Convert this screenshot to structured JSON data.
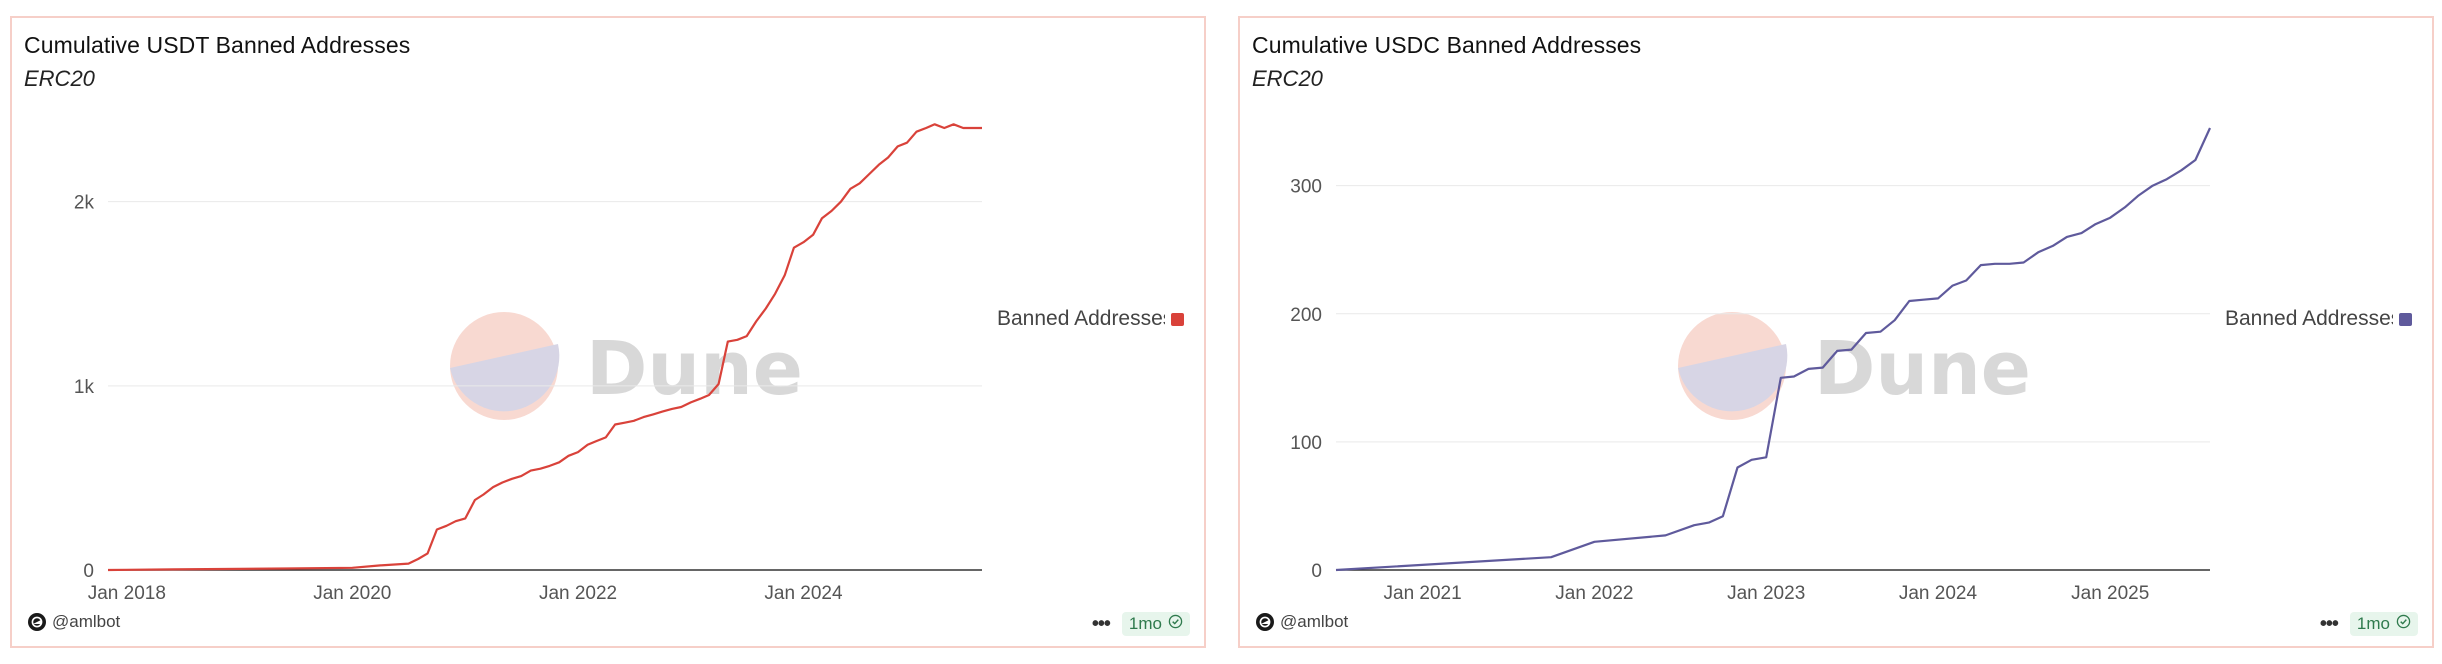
{
  "panels": [
    {
      "title": "Cumulative USDT Banned Addresses",
      "subtitle": "ERC20",
      "legend_label": "Banned Addresses",
      "author": "@amlbot",
      "freshness": "1mo",
      "watermark": "Dune",
      "color": "#d9423a"
    },
    {
      "title": "Cumulative USDC Banned Addresses",
      "subtitle": "ERC20",
      "legend_label": "Banned Addresses",
      "author": "@amlbot",
      "freshness": "1mo",
      "watermark": "Dune",
      "color": "#5f5a9c"
    }
  ],
  "chart_data": [
    {
      "type": "line",
      "title": "Cumulative USDT Banned Addresses",
      "subtitle": "ERC20",
      "xlabel": "",
      "ylabel": "",
      "x_ticks": [
        "Jan 2018",
        "Jan 2020",
        "Jan 2022",
        "Jan 2024"
      ],
      "y_ticks": [
        "0",
        "1k",
        "2k"
      ],
      "y_tick_values": [
        0,
        1000,
        2000
      ],
      "ylim": [
        0,
        2400
      ],
      "xlim": [
        "2017-11-01",
        "2025-08-01"
      ],
      "grid": true,
      "legend": "right",
      "series": [
        {
          "name": "Banned Addresses",
          "color": "#d9423a",
          "x": [
            "2017-11-01",
            "2018-06-01",
            "2019-01-01",
            "2019-06-01",
            "2020-01-01",
            "2020-04-01",
            "2020-07-01",
            "2020-08-01",
            "2020-09-01",
            "2020-10-01",
            "2020-11-01",
            "2020-12-01",
            "2021-01-01",
            "2021-02-01",
            "2021-03-01",
            "2021-04-01",
            "2021-05-01",
            "2021-06-01",
            "2021-07-01",
            "2021-08-01",
            "2021-09-01",
            "2021-10-01",
            "2021-11-01",
            "2021-12-01",
            "2022-01-01",
            "2022-02-01",
            "2022-03-01",
            "2022-04-01",
            "2022-05-01",
            "2022-06-01",
            "2022-07-01",
            "2022-08-01",
            "2022-09-01",
            "2022-10-01",
            "2022-11-01",
            "2022-12-01",
            "2023-01-01",
            "2023-02-01",
            "2023-03-01",
            "2023-04-01",
            "2023-05-01",
            "2023-06-01",
            "2023-07-01",
            "2023-08-01",
            "2023-09-01",
            "2023-10-01",
            "2023-11-01",
            "2023-12-01",
            "2024-01-01",
            "2024-02-01",
            "2024-03-01",
            "2024-04-01",
            "2024-05-01",
            "2024-06-01",
            "2024-07-01",
            "2024-08-01",
            "2024-09-01",
            "2024-10-01",
            "2024-11-01",
            "2024-12-01",
            "2025-01-01",
            "2025-02-01",
            "2025-03-01",
            "2025-04-01",
            "2025-05-01",
            "2025-06-01",
            "2025-07-01",
            "2025-08-01"
          ],
          "values": [
            0,
            3,
            6,
            8,
            12,
            25,
            35,
            60,
            90,
            220,
            240,
            265,
            280,
            380,
            410,
            450,
            475,
            495,
            510,
            540,
            550,
            565,
            585,
            620,
            640,
            680,
            700,
            720,
            790,
            800,
            810,
            830,
            845,
            860,
            875,
            885,
            910,
            930,
            950,
            1010,
            1240,
            1250,
            1270,
            1350,
            1420,
            1500,
            1600,
            1750,
            1780,
            1820,
            1910,
            1950,
            2000,
            2070,
            2100,
            2150,
            2200,
            2240,
            2300,
            2320,
            2380,
            2400,
            2420,
            2400,
            2420,
            2400,
            2400,
            2400
          ]
        }
      ]
    },
    {
      "type": "line",
      "title": "Cumulative USDC Banned Addresses",
      "subtitle": "ERC20",
      "xlabel": "",
      "ylabel": "",
      "x_ticks": [
        "Jan 2021",
        "Jan 2022",
        "Jan 2023",
        "Jan 2024",
        "Jan 2025"
      ],
      "y_ticks": [
        "0",
        "100",
        "200",
        "300"
      ],
      "y_tick_values": [
        0,
        100,
        200,
        300
      ],
      "ylim": [
        0,
        345
      ],
      "xlim": [
        "2020-07-01",
        "2025-08-01"
      ],
      "grid": true,
      "legend": "right",
      "series": [
        {
          "name": "Banned Addresses",
          "color": "#5f5a9c",
          "x": [
            "2020-07-01",
            "2021-10-01",
            "2022-01-01",
            "2022-06-01",
            "2022-08-01",
            "2022-09-01",
            "2022-10-01",
            "2022-11-01",
            "2022-12-01",
            "2023-01-01",
            "2023-02-01",
            "2023-03-01",
            "2023-04-01",
            "2023-05-01",
            "2023-06-01",
            "2023-07-01",
            "2023-08-01",
            "2023-09-01",
            "2023-10-01",
            "2023-11-01",
            "2023-12-01",
            "2024-01-01",
            "2024-02-01",
            "2024-03-01",
            "2024-04-01",
            "2024-05-01",
            "2024-06-01",
            "2024-07-01",
            "2024-08-01",
            "2024-09-01",
            "2024-10-01",
            "2024-11-01",
            "2024-12-01",
            "2025-01-01",
            "2025-02-01",
            "2025-03-01",
            "2025-04-01",
            "2025-05-01",
            "2025-06-01",
            "2025-07-01",
            "2025-08-01"
          ],
          "values": [
            0,
            10,
            22,
            27,
            35,
            37,
            42,
            80,
            86,
            88,
            150,
            151,
            157,
            158,
            171,
            172,
            185,
            186,
            195,
            210,
            211,
            212,
            222,
            226,
            238,
            239,
            239,
            240,
            248,
            253,
            260,
            263,
            270,
            275,
            283,
            292,
            300,
            305,
            312,
            320,
            345
          ]
        }
      ]
    }
  ]
}
